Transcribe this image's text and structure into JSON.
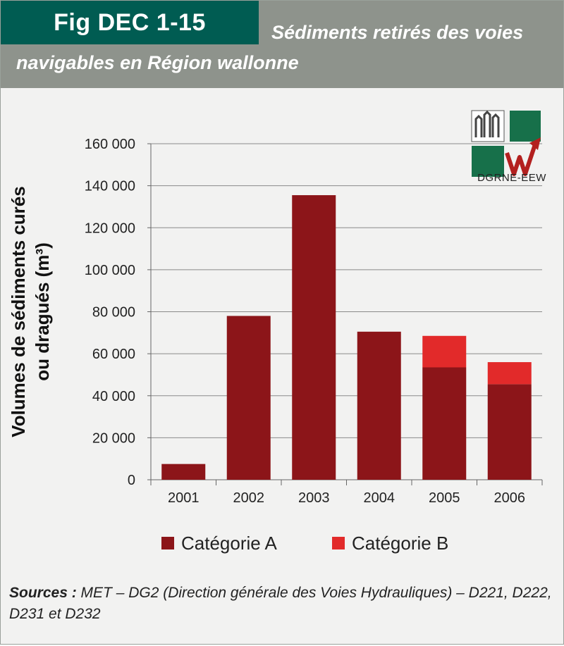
{
  "header": {
    "fig_tag": "Fig DEC 1-15",
    "title_line1": "Sédiments retirés des voies",
    "title_line2": "navigables en Région wallonne"
  },
  "logo": {
    "label": "DGRNE-EEW"
  },
  "sources": {
    "label": "Sources :",
    "text": "MET – DG2 (Direction générale des Voies Hydrauliques) – D221, D222, D231 et D232"
  },
  "colors": {
    "cat_a": "#8c1519",
    "cat_b": "#e22a2a",
    "header_bg": "#8e938c",
    "tag_bg": "#005c52"
  },
  "chart_data": {
    "type": "bar",
    "stacked": true,
    "categories": [
      "2001",
      "2002",
      "2003",
      "2004",
      "2005",
      "2006"
    ],
    "series": [
      {
        "name": "Catégorie A",
        "values": [
          7500,
          78000,
          135500,
          70500,
          53500,
          45500
        ]
      },
      {
        "name": "Catégorie B",
        "values": [
          0,
          0,
          0,
          0,
          15000,
          10500
        ]
      }
    ],
    "ylabel_line1": "Volumes de sédiments curés",
    "ylabel_line2": "ou dragués (m³)",
    "xlabel": "",
    "ylim": [
      0,
      160000
    ],
    "yticks": [
      0,
      20000,
      40000,
      60000,
      80000,
      100000,
      120000,
      140000,
      160000
    ],
    "ytick_labels": [
      "0",
      "20 000",
      "40 000",
      "60 000",
      "80 000",
      "100 000",
      "120 000",
      "140 000",
      "160 000"
    ],
    "grid": true,
    "legend_position": "bottom"
  }
}
